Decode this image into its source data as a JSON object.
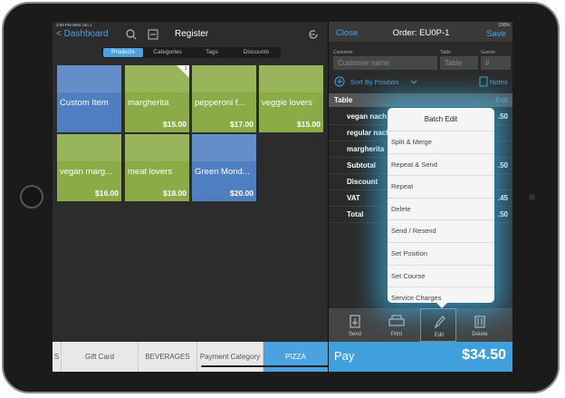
{
  "status_bar": {
    "time": "3:06 PM  Wed Jun 1",
    "battery": "100%"
  },
  "register": {
    "back": "Dashboard",
    "title": "Register",
    "tabs": [
      "Products",
      "Categories",
      "Tags",
      "Discounts"
    ],
    "tiles": [
      {
        "name": "Custom Item",
        "color": "#4f7fc0"
      },
      {
        "name": "margherita",
        "price": "$15.00",
        "color": "#8aab45",
        "badge": "1"
      },
      {
        "name": "pepperoni f...",
        "price": "$17.00",
        "color": "#8aab45"
      },
      {
        "name": "veggie lovers",
        "price": "$15.00",
        "color": "#8aab45"
      },
      {
        "name": "vegan marg...",
        "price": "$16.00",
        "color": "#8aab45"
      },
      {
        "name": "meat lovers",
        "price": "$18.00",
        "color": "#8aab45"
      },
      {
        "name": "Green Mond...",
        "price": "$20.00",
        "color": "#4f7fc0"
      }
    ],
    "categories": [
      "S",
      "Gift Card",
      "BEVERAGES",
      "Payment Category",
      "PIZZA"
    ]
  },
  "order": {
    "close": "Close",
    "title": "Order: EU0P-1",
    "save": "Save",
    "fields": [
      {
        "label": "Customer",
        "placeholder": "Customer name"
      },
      {
        "label": "Table",
        "placeholder": "Table"
      },
      {
        "label": "Guests",
        "placeholder": "#"
      }
    ],
    "sort": "Sort By Position",
    "notes": "Notes",
    "section": "Table",
    "edit": "Edit",
    "rows": [
      {
        "label": "vegan nach",
        "amount": ".50"
      },
      {
        "label": "regular nach"
      },
      {
        "label": "margherita"
      },
      {
        "label": "Subtotal",
        "amount": ".50"
      },
      {
        "label": "Discount"
      },
      {
        "label": "VAT",
        "amount": ".45"
      },
      {
        "label": "Total",
        "amount": ".50"
      }
    ],
    "toolbar": [
      "Send",
      "Print",
      "Edit",
      "Delete"
    ],
    "pay_label": "Pay",
    "pay_total": "$34.50"
  },
  "batch_edit": {
    "title": "Batch Edit",
    "options": [
      "Split & Merge",
      "Repeat & Send",
      "Repeat",
      "Delete",
      "Send / Resend",
      "Set Position",
      "Set Course",
      "Service Charges"
    ]
  }
}
